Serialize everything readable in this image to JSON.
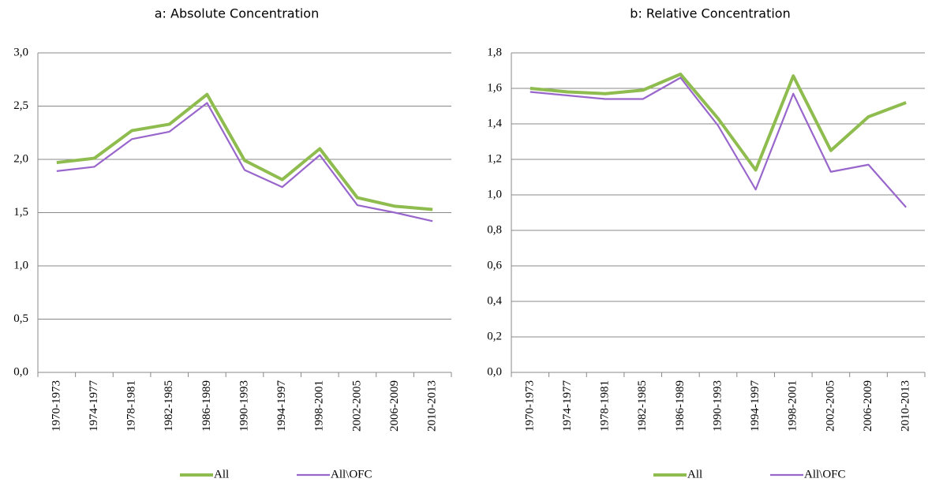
{
  "chart_data": [
    {
      "type": "line",
      "title": "a: Absolute Concentration",
      "categories": [
        "1970-1973",
        "1974-1977",
        "1978-1981",
        "1982-1985",
        "1986-1989",
        "1990-1993",
        "1994-1997",
        "1998-2001",
        "2002-2005",
        "2006-2009",
        "2010-2013"
      ],
      "series": [
        {
          "name": "All",
          "color": "#8fbc4f",
          "values": [
            1.97,
            2.01,
            2.27,
            2.33,
            2.61,
            1.99,
            1.81,
            2.1,
            1.64,
            1.56,
            1.53
          ]
        },
        {
          "name": "All\\OFC",
          "color": "#9966cc",
          "values": [
            1.89,
            1.93,
            2.19,
            2.26,
            2.53,
            1.9,
            1.74,
            2.04,
            1.57,
            1.5,
            1.42
          ]
        }
      ],
      "ylim": [
        0,
        3
      ],
      "yticks": [
        {
          "value": 0,
          "label": "0,0"
        },
        {
          "value": 0.5,
          "label": "0,5"
        },
        {
          "value": 1,
          "label": "1,0"
        },
        {
          "value": 1.5,
          "label": "1,5"
        },
        {
          "value": 2,
          "label": "2,0"
        },
        {
          "value": 2.5,
          "label": "2,5"
        },
        {
          "value": 3,
          "label": "3,0"
        }
      ],
      "grid": true,
      "legend": "bottom"
    },
    {
      "type": "line",
      "title": "b: Relative Concentration",
      "categories": [
        "1970-1973",
        "1974-1977",
        "1978-1981",
        "1982-1985",
        "1986-1989",
        "1990-1993",
        "1994-1997",
        "1998-2001",
        "2002-2005",
        "2006-2009",
        "2010-2013"
      ],
      "series": [
        {
          "name": "All",
          "color": "#8fbc4f",
          "values": [
            1.6,
            1.58,
            1.57,
            1.59,
            1.68,
            1.43,
            1.14,
            1.67,
            1.25,
            1.44,
            1.52
          ]
        },
        {
          "name": "All\\OFC",
          "color": "#9966cc",
          "values": [
            1.58,
            1.56,
            1.54,
            1.54,
            1.66,
            1.39,
            1.03,
            1.57,
            1.13,
            1.17,
            0.93
          ]
        }
      ],
      "ylim": [
        0,
        1.8
      ],
      "yticks": [
        {
          "value": 0,
          "label": "0,0"
        },
        {
          "value": 0.2,
          "label": "0,2"
        },
        {
          "value": 0.4,
          "label": "0,4"
        },
        {
          "value": 0.6,
          "label": "0,6"
        },
        {
          "value": 0.8,
          "label": "0,8"
        },
        {
          "value": 1,
          "label": "1,0"
        },
        {
          "value": 1.2,
          "label": "1,2"
        },
        {
          "value": 1.4,
          "label": "1,4"
        },
        {
          "value": 1.6,
          "label": "1,6"
        },
        {
          "value": 1.8,
          "label": "1,8"
        }
      ],
      "grid": true,
      "legend": "bottom"
    }
  ]
}
